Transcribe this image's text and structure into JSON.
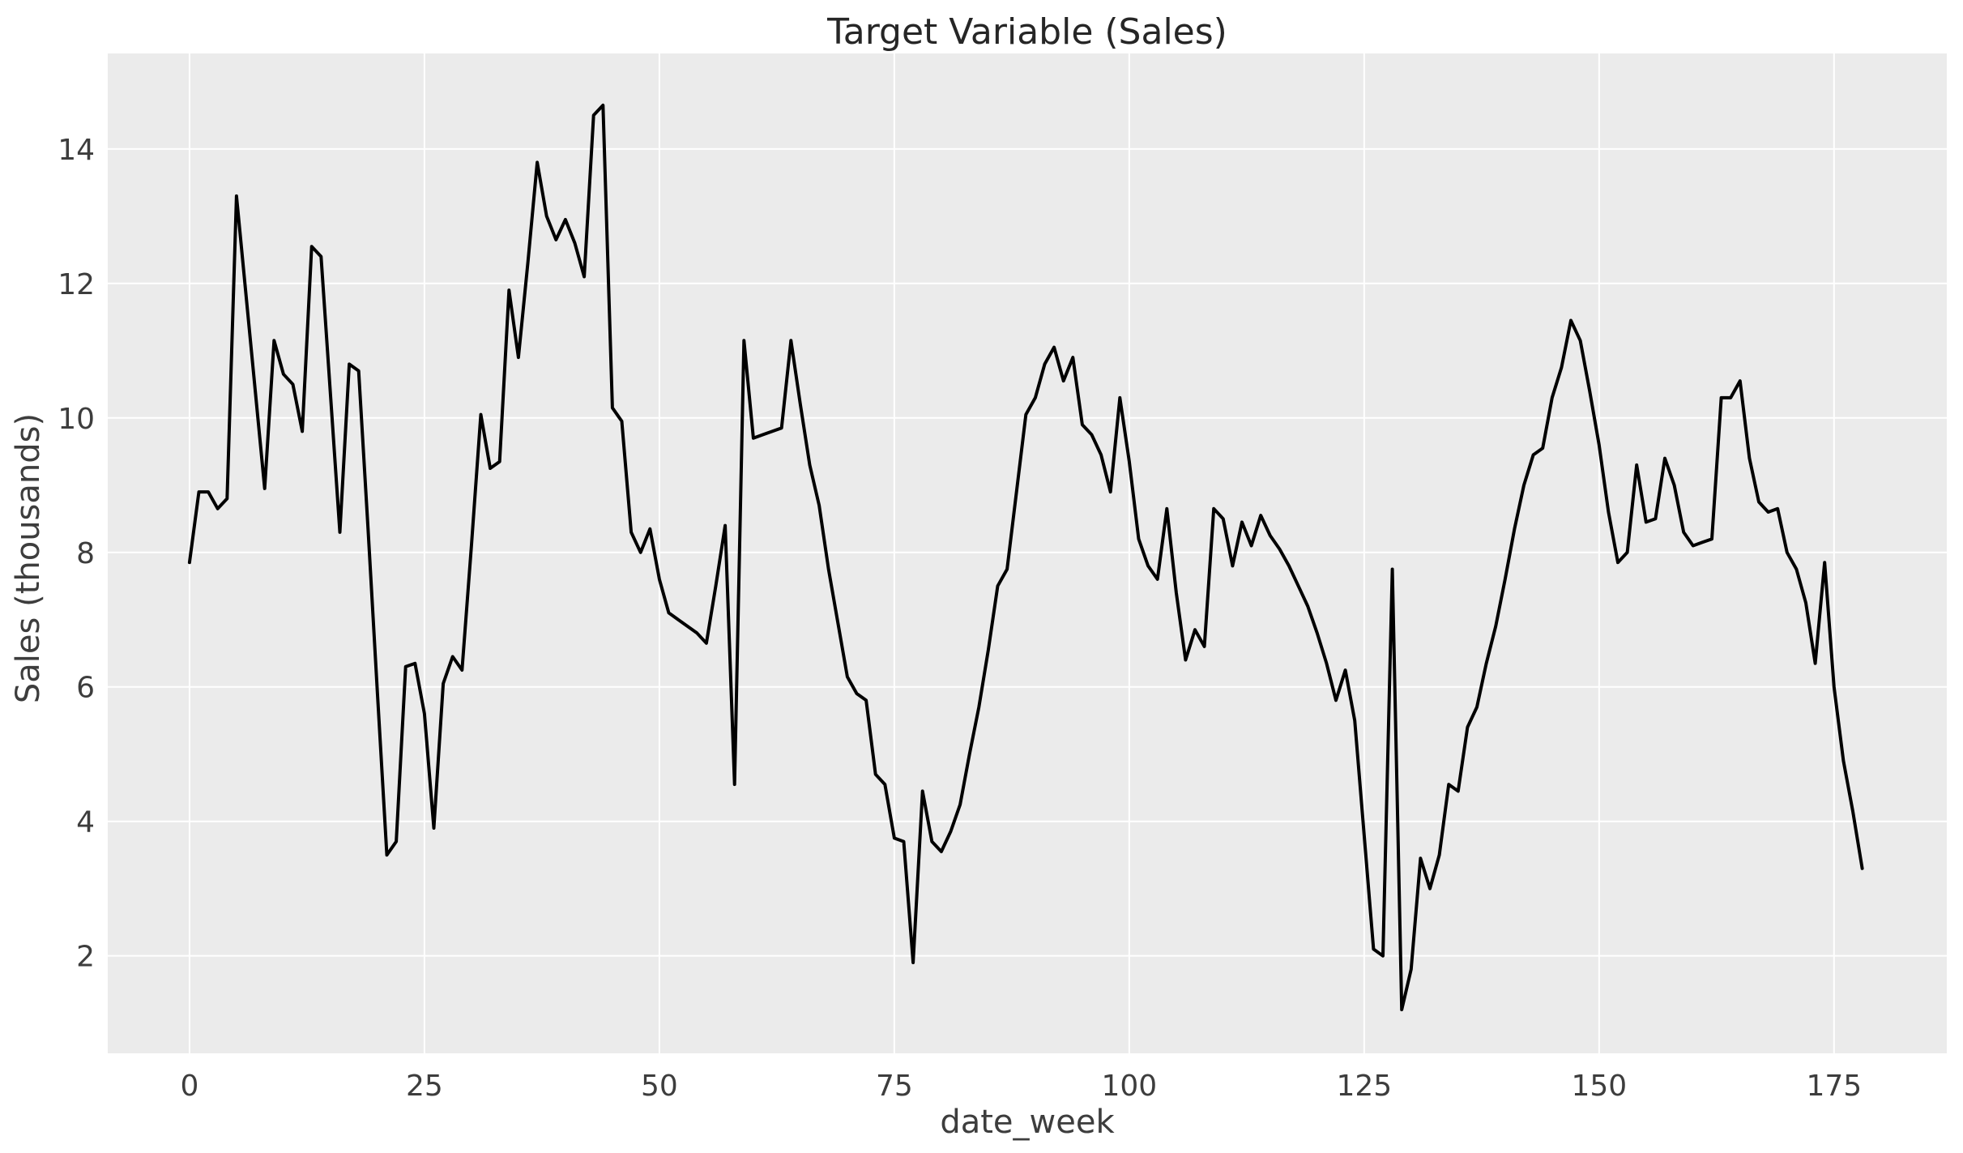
{
  "chart_data": {
    "type": "line",
    "title": "Target Variable (Sales)",
    "xlabel": "date_week",
    "ylabel": "Sales (thousands)",
    "x_start": 0,
    "x_step": 1,
    "values": [
      7.85,
      8.9,
      8.9,
      8.65,
      8.8,
      13.3,
      11.85,
      10.4,
      8.95,
      11.15,
      10.65,
      10.5,
      9.8,
      12.55,
      12.4,
      10.35,
      8.3,
      10.8,
      10.7,
      8.35,
      5.9,
      3.5,
      3.7,
      6.3,
      6.35,
      5.6,
      3.9,
      6.05,
      6.45,
      6.25,
      8.1,
      10.05,
      9.25,
      9.35,
      11.9,
      10.9,
      12.3,
      13.8,
      13.0,
      12.65,
      12.95,
      12.6,
      12.1,
      14.5,
      14.65,
      10.15,
      9.95,
      8.3,
      8.0,
      8.35,
      7.6,
      7.1,
      7.0,
      6.9,
      6.8,
      6.65,
      7.5,
      8.4,
      4.55,
      11.15,
      9.7,
      9.75,
      9.8,
      9.85,
      11.15,
      10.2,
      9.3,
      8.7,
      7.75,
      6.95,
      6.15,
      5.9,
      5.8,
      4.7,
      4.55,
      3.75,
      3.7,
      1.9,
      4.45,
      3.7,
      3.55,
      3.85,
      4.25,
      5.0,
      5.7,
      6.55,
      7.5,
      7.75,
      8.9,
      10.05,
      10.3,
      10.8,
      11.05,
      10.55,
      10.9,
      9.9,
      9.75,
      9.45,
      8.9,
      10.3,
      9.35,
      8.2,
      7.8,
      7.6,
      8.65,
      7.4,
      6.4,
      6.85,
      6.6,
      8.65,
      8.5,
      7.8,
      8.45,
      8.1,
      8.55,
      8.25,
      8.05,
      7.8,
      7.5,
      7.2,
      6.8,
      6.35,
      5.8,
      6.25,
      5.5,
      3.8,
      2.1,
      2.0,
      7.75,
      1.2,
      1.8,
      3.45,
      3.0,
      3.5,
      4.55,
      4.45,
      5.4,
      5.7,
      6.35,
      6.9,
      7.6,
      8.35,
      9.0,
      9.45,
      9.55,
      10.3,
      10.75,
      11.45,
      11.15,
      10.4,
      9.6,
      8.6,
      7.85,
      8.0,
      9.3,
      8.45,
      8.5,
      9.4,
      9.0,
      8.3,
      8.1,
      8.15,
      8.2,
      10.3,
      10.3,
      10.55,
      9.4,
      8.75,
      8.6,
      8.65,
      8.0,
      7.75,
      7.25,
      6.35,
      7.85,
      6.0,
      4.9,
      4.15,
      3.3
    ],
    "xlim": [
      -8.7,
      187.0
    ],
    "ylim": [
      0.55,
      15.42
    ],
    "xticks": [
      0,
      25,
      50,
      75,
      100,
      125,
      150,
      175
    ],
    "yticks": [
      2,
      4,
      6,
      8,
      10,
      12,
      14
    ],
    "grid": true,
    "legend_position": "none",
    "line_color": "#000000",
    "plot_bg": "#ebebeb",
    "fig_bg": "#ffffff",
    "grid_color": "#ffffff",
    "tick_color": "#3d3d3d",
    "title_color": "#262626"
  }
}
